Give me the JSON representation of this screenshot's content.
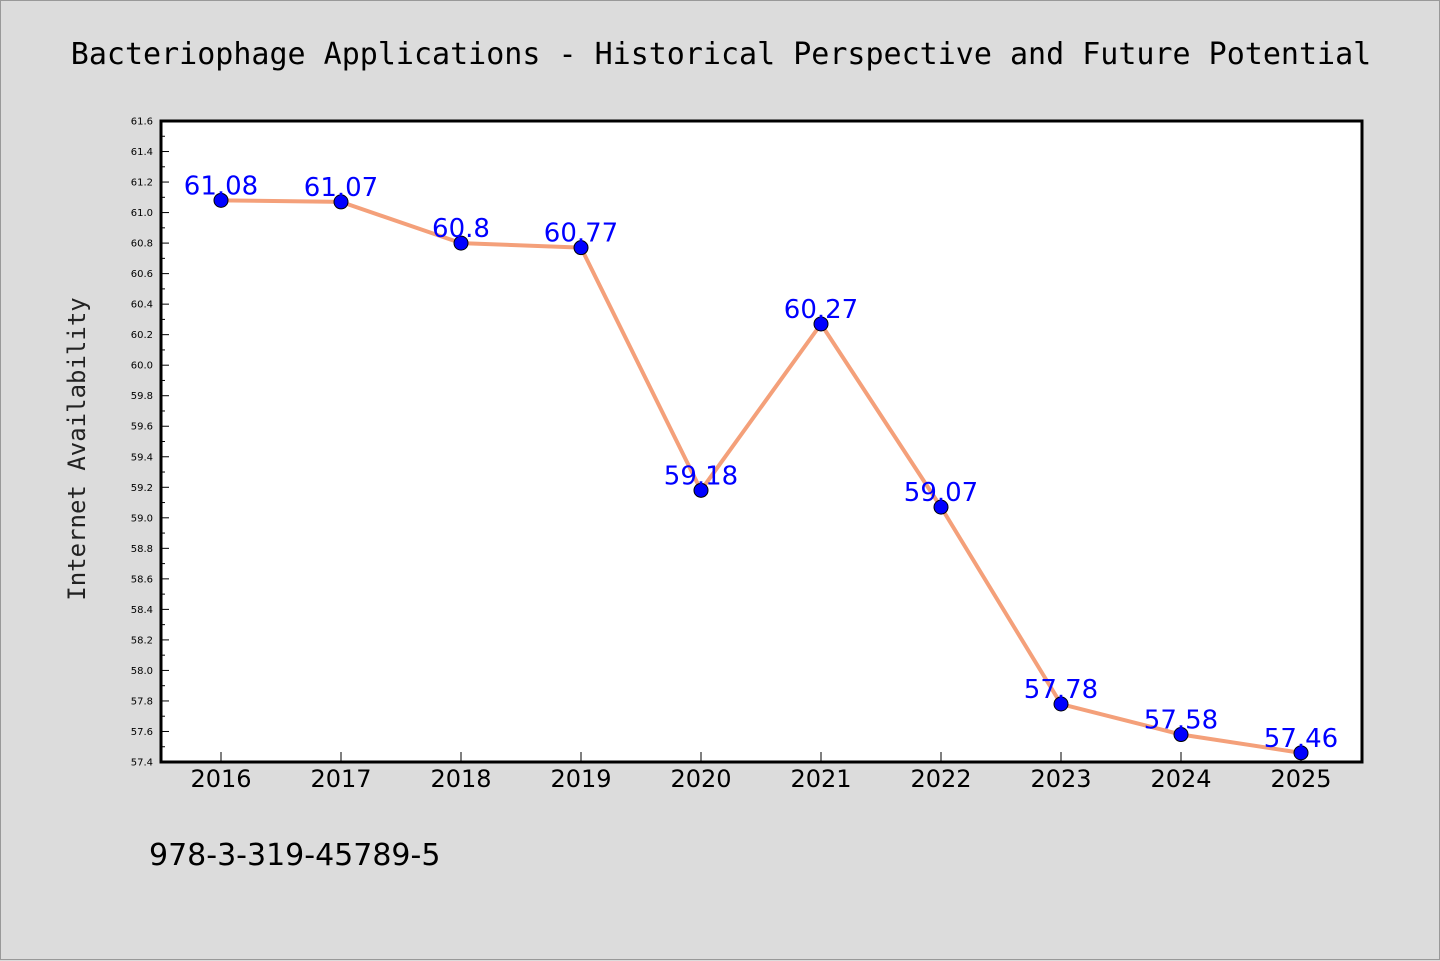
{
  "chart_data": {
    "type": "line",
    "title": "Bacteriophage Applications - Historical Perspective and Future Potential",
    "xlabel": "",
    "ylabel": "Internet Availability",
    "categories": [
      "2016",
      "2017",
      "2018",
      "2019",
      "2020",
      "2021",
      "2022",
      "2023",
      "2024",
      "2025"
    ],
    "series": [
      {
        "values": [
          61.08,
          61.07,
          60.8,
          60.77,
          59.18,
          60.27,
          59.07,
          57.78,
          57.58,
          57.46
        ],
        "data_labels": [
          "61.08",
          "61.07",
          "60.8",
          "60.77",
          "59.18",
          "60.27",
          "59.07",
          "57.78",
          "57.58",
          "57.46"
        ],
        "line_color": "#f4a07a",
        "marker_color": "#0000ff",
        "label_color": "#0000ff"
      }
    ],
    "ylim": [
      57.4,
      61.6
    ],
    "yticks": [
      "57.4",
      "57.6",
      "57.8",
      "58.0",
      "58.2",
      "58.4",
      "58.6",
      "58.8",
      "59.0",
      "59.2",
      "59.4",
      "59.6",
      "59.8",
      "60.0",
      "60.2",
      "60.4",
      "60.6",
      "60.8",
      "61.0",
      "61.2",
      "61.4",
      "61.6"
    ],
    "grid": false,
    "legend": "none"
  },
  "footnote": "978-3-319-45789-5",
  "colors": {
    "background": "#dcdcdc",
    "plot_background": "#ffffff",
    "line": "#f4a07a",
    "marker": "#0000ff"
  }
}
